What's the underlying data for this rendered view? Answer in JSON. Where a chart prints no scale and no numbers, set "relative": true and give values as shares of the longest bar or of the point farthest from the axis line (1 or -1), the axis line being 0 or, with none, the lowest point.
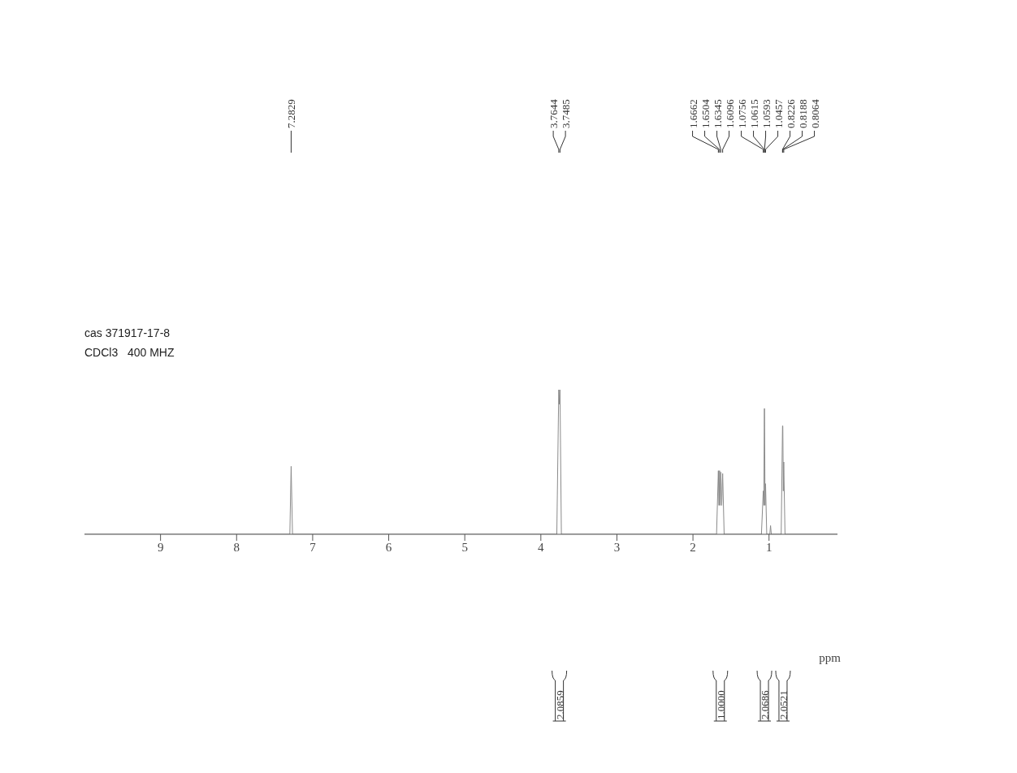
{
  "chart_data": {
    "type": "line",
    "title": "cas 371917-17-8",
    "subtitle": "CDCl3   400 MHZ",
    "relative": true,
    "xlim": [
      10,
      0.1
    ],
    "xticks": [
      9,
      8,
      7,
      6,
      5,
      4,
      3,
      2,
      1
    ],
    "marker": "none",
    "line_style": "solid",
    "series": [
      {
        "color": "#8a8a8a",
        "x": [
          10,
          7.3,
          7.2829,
          7.265,
          3.79,
          3.7644,
          3.756,
          3.7485,
          3.73,
          1.69,
          1.6662,
          1.658,
          1.6504,
          1.642,
          1.6345,
          1.622,
          1.6096,
          1.59,
          1.1,
          1.0756,
          1.068,
          1.0615,
          1.0593,
          1.052,
          1.0457,
          1.03,
          0.99,
          0.98,
          0.97,
          0.84,
          0.8226,
          0.8188,
          0.812,
          0.8064,
          0.79,
          0.1
        ],
        "values": [
          0,
          0,
          0.47,
          0,
          0,
          1,
          0.9,
          1,
          0,
          0,
          0.44,
          0.2,
          0.44,
          0.2,
          0.43,
          0.2,
          0.42,
          0,
          0,
          0.3,
          0.2,
          0.87,
          0.87,
          0.2,
          0.35,
          0,
          0,
          0.06,
          0,
          0,
          0.75,
          0.75,
          0.3,
          0.5,
          0,
          0
        ]
      }
    ],
    "grid": false,
    "legend": false,
    "annotations": [
      "ppm",
      {
        "text": "7.2829",
        "x": 7.2829
      },
      {
        "text": "3.7644",
        "x": 3.7644
      },
      {
        "text": "3.7485",
        "x": 3.7485
      },
      {
        "text": "1.6662",
        "x": 1.6662
      },
      {
        "text": "1.6504",
        "x": 1.6504
      },
      {
        "text": "1.6345",
        "x": 1.6345
      },
      {
        "text": "1.6096",
        "x": 1.6096
      },
      {
        "text": "1.0756",
        "x": 1.0756
      },
      {
        "text": "1.0615",
        "x": 1.0615
      },
      {
        "text": "1.0593",
        "x": 1.0593
      },
      {
        "text": "1.0457",
        "x": 1.0457
      },
      {
        "text": "0.8226",
        "x": 0.8226
      },
      {
        "text": "0.8188",
        "x": 0.8188
      },
      {
        "text": "0.8064",
        "x": 0.8064
      },
      "2.0859",
      "1.0000",
      "2.0686",
      "2.0521"
    ]
  }
}
